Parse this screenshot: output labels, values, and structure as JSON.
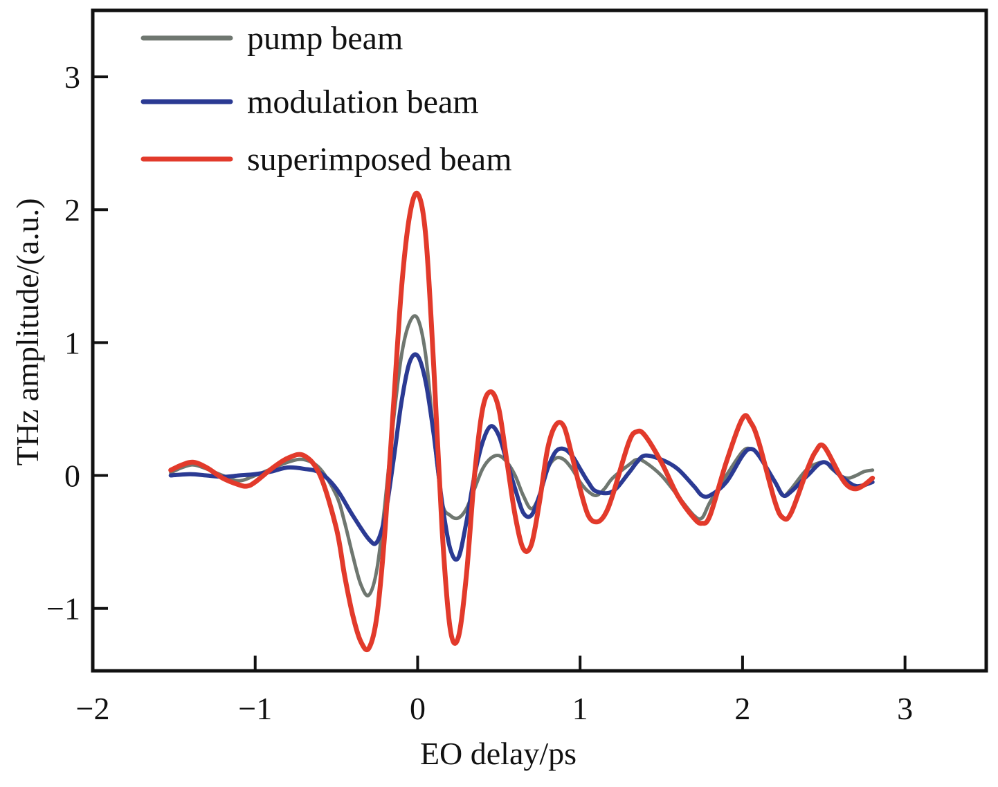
{
  "chart_data": {
    "type": "line",
    "title": "",
    "xlabel": "EO delay/ps",
    "ylabel": "THz amplitude/(a.u.)",
    "xlim": [
      -2,
      3.5
    ],
    "ylim": [
      -1.47,
      3.5
    ],
    "xticks": [
      -2,
      -1,
      0,
      1,
      2,
      3
    ],
    "xtick_labels": [
      "−2",
      "−1",
      "0",
      "1",
      "2",
      "3"
    ],
    "yticks": [
      -1,
      0,
      1,
      2,
      3
    ],
    "ytick_labels": [
      "−1",
      "0",
      "1",
      "2",
      "3"
    ],
    "grid": false,
    "legend_position": "top-left",
    "series": [
      {
        "name": "pump beam",
        "color": "#6f7770",
        "x": [
          -1.52,
          -1.45,
          -1.38,
          -1.3,
          -1.2,
          -1.1,
          -1.0,
          -0.9,
          -0.8,
          -0.7,
          -0.6,
          -0.5,
          -0.45,
          -0.4,
          -0.35,
          -0.3,
          -0.25,
          -0.2,
          -0.15,
          -0.1,
          -0.05,
          0.0,
          0.05,
          0.1,
          0.15,
          0.2,
          0.25,
          0.3,
          0.35,
          0.4,
          0.45,
          0.5,
          0.55,
          0.6,
          0.65,
          0.7,
          0.75,
          0.8,
          0.85,
          0.9,
          0.95,
          1.0,
          1.05,
          1.1,
          1.15,
          1.2,
          1.3,
          1.35,
          1.4,
          1.5,
          1.6,
          1.7,
          1.75,
          1.8,
          1.9,
          2.0,
          2.05,
          2.1,
          2.2,
          2.25,
          2.3,
          2.4,
          2.5,
          2.55,
          2.6,
          2.65,
          2.7,
          2.75,
          2.8
        ],
        "y": [
          0.02,
          0.06,
          0.08,
          0.05,
          0.0,
          -0.04,
          0.0,
          0.05,
          0.1,
          0.12,
          0.05,
          -0.15,
          -0.35,
          -0.6,
          -0.82,
          -0.9,
          -0.7,
          -0.2,
          0.4,
          0.9,
          1.15,
          1.18,
          0.9,
          0.3,
          -0.2,
          -0.3,
          -0.32,
          -0.25,
          -0.1,
          0.05,
          0.13,
          0.15,
          0.1,
          0.0,
          -0.15,
          -0.25,
          -0.15,
          0.05,
          0.13,
          0.12,
          0.05,
          -0.05,
          -0.12,
          -0.15,
          -0.1,
          -0.02,
          0.08,
          0.12,
          0.1,
          0.0,
          -0.15,
          -0.3,
          -0.32,
          -0.2,
          0.0,
          0.18,
          0.2,
          0.15,
          -0.05,
          -0.15,
          -0.1,
          0.05,
          0.1,
          0.05,
          0.0,
          -0.02,
          0.0,
          0.03,
          0.04
        ]
      },
      {
        "name": "modulation beam",
        "color": "#2b3a93",
        "x": [
          -1.52,
          -1.4,
          -1.3,
          -1.2,
          -1.1,
          -1.0,
          -0.9,
          -0.8,
          -0.7,
          -0.6,
          -0.5,
          -0.4,
          -0.3,
          -0.25,
          -0.2,
          -0.15,
          -0.1,
          -0.05,
          0.0,
          0.05,
          0.1,
          0.15,
          0.2,
          0.25,
          0.3,
          0.35,
          0.4,
          0.45,
          0.5,
          0.55,
          0.6,
          0.65,
          0.7,
          0.75,
          0.8,
          0.85,
          0.9,
          0.95,
          1.0,
          1.05,
          1.1,
          1.2,
          1.3,
          1.35,
          1.4,
          1.5,
          1.6,
          1.7,
          1.75,
          1.8,
          1.9,
          2.0,
          2.05,
          2.1,
          2.2,
          2.25,
          2.3,
          2.4,
          2.5,
          2.6,
          2.7,
          2.8
        ],
        "y": [
          0.0,
          0.01,
          0.0,
          -0.01,
          0.0,
          0.01,
          0.03,
          0.06,
          0.05,
          0.02,
          -0.1,
          -0.3,
          -0.48,
          -0.5,
          -0.3,
          0.1,
          0.55,
          0.85,
          0.9,
          0.7,
          0.3,
          -0.2,
          -0.55,
          -0.62,
          -0.35,
          0.0,
          0.25,
          0.37,
          0.3,
          0.1,
          -0.1,
          -0.28,
          -0.3,
          -0.15,
          0.05,
          0.18,
          0.2,
          0.15,
          0.05,
          -0.05,
          -0.12,
          -0.12,
          0.02,
          0.1,
          0.15,
          0.12,
          0.05,
          -0.08,
          -0.15,
          -0.15,
          -0.05,
          0.15,
          0.2,
          0.15,
          -0.05,
          -0.15,
          -0.12,
          0.0,
          0.1,
          0.0,
          -0.08,
          -0.05
        ]
      },
      {
        "name": "superimposed beam",
        "color": "#e23a2b",
        "x": [
          -1.52,
          -1.45,
          -1.38,
          -1.3,
          -1.2,
          -1.1,
          -1.05,
          -1.0,
          -0.9,
          -0.8,
          -0.7,
          -0.6,
          -0.5,
          -0.45,
          -0.4,
          -0.35,
          -0.3,
          -0.25,
          -0.2,
          -0.15,
          -0.1,
          -0.05,
          0.0,
          0.05,
          0.1,
          0.15,
          0.2,
          0.25,
          0.3,
          0.35,
          0.4,
          0.45,
          0.5,
          0.55,
          0.6,
          0.65,
          0.7,
          0.75,
          0.8,
          0.85,
          0.9,
          0.95,
          1.0,
          1.05,
          1.1,
          1.15,
          1.2,
          1.3,
          1.35,
          1.4,
          1.5,
          1.6,
          1.7,
          1.75,
          1.8,
          1.9,
          2.0,
          2.05,
          2.1,
          2.2,
          2.25,
          2.3,
          2.4,
          2.45,
          2.5,
          2.6,
          2.65,
          2.7,
          2.75,
          2.8
        ],
        "y": [
          0.04,
          0.08,
          0.1,
          0.06,
          -0.02,
          -0.07,
          -0.08,
          -0.05,
          0.05,
          0.13,
          0.15,
          0.0,
          -0.4,
          -0.75,
          -1.05,
          -1.25,
          -1.3,
          -1.05,
          -0.4,
          0.5,
          1.4,
          1.95,
          2.12,
          1.8,
          0.8,
          -0.4,
          -1.15,
          -1.22,
          -0.75,
          0.0,
          0.5,
          0.63,
          0.5,
          0.1,
          -0.3,
          -0.55,
          -0.52,
          -0.2,
          0.2,
          0.38,
          0.37,
          0.15,
          -0.1,
          -0.3,
          -0.35,
          -0.3,
          -0.15,
          0.25,
          0.33,
          0.3,
          0.1,
          -0.15,
          -0.32,
          -0.36,
          -0.3,
          0.1,
          0.43,
          0.4,
          0.25,
          -0.2,
          -0.32,
          -0.28,
          0.05,
          0.18,
          0.22,
          0.0,
          -0.08,
          -0.1,
          -0.07,
          -0.02
        ]
      }
    ]
  }
}
